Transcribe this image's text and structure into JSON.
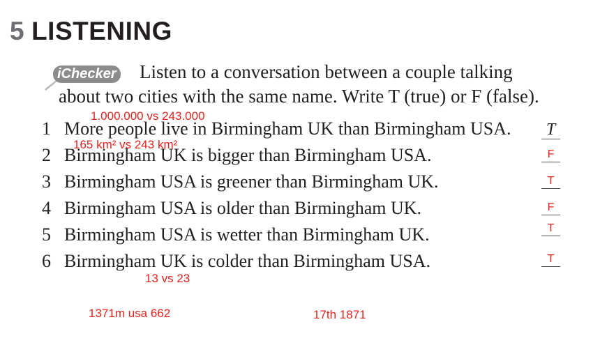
{
  "exercise": {
    "number": "5",
    "title": "LISTENING",
    "badge": "iChecker",
    "instruction_line1": "Listen to a conversation between a couple talking",
    "instruction_line2": "about two cities with the same name. Write T (true) or F (false)."
  },
  "items": [
    {
      "number": "1",
      "text": "More people live in Birmingham UK than Birmingham USA.",
      "answer": "T"
    },
    {
      "number": "2",
      "text": "Birmingham UK is bigger than Birmingham USA.",
      "answer": "F"
    },
    {
      "number": "3",
      "text": "Birmingham USA is greener than Birmingham UK.",
      "answer": "T"
    },
    {
      "number": "4",
      "text": "Birmingham USA is older than Birmingham UK.",
      "answer": "F"
    },
    {
      "number": "5",
      "text": "Birmingham USA is wetter than Birmingham UK.",
      "answer": "T"
    },
    {
      "number": "6",
      "text": "Birmingham UK is colder than Birmingham USA.",
      "answer": "T"
    }
  ],
  "notes": {
    "population": "1.000.000 vs 243.000",
    "area": "165 km² vs 243 km²",
    "temperature": "13 vs 23",
    "rainfall": "1371m usa 662",
    "founded": "17th 1871"
  },
  "colors": {
    "annotation": "#e5241f",
    "heading_number": "#6d6e71",
    "badge": "#8a8c8e"
  }
}
